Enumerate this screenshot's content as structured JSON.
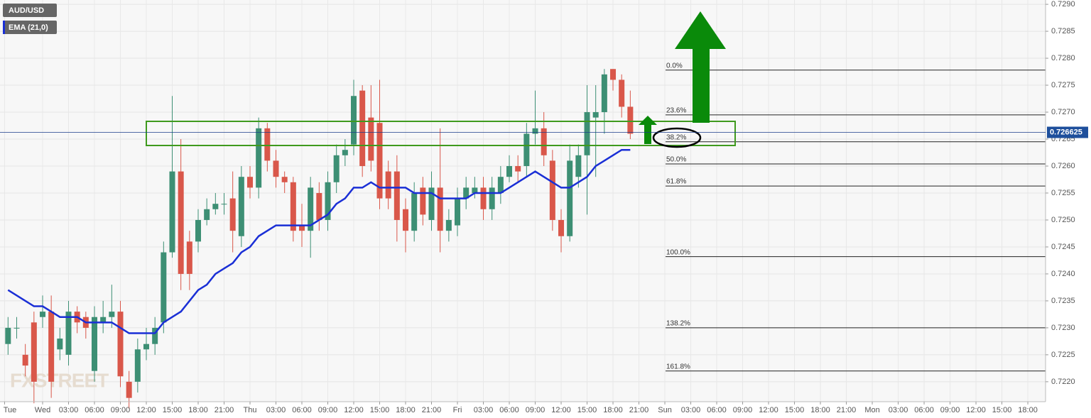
{
  "chart_data": {
    "type": "candlestick",
    "symbol": "AUD/USD",
    "watermark": "FXSTREET",
    "x": [
      -4,
      -3,
      -2,
      -1,
      0,
      1,
      2,
      3,
      4,
      5,
      6,
      7,
      8,
      9,
      10,
      11,
      12,
      13,
      14,
      15,
      16,
      17,
      18,
      19,
      20,
      21,
      22,
      23,
      24,
      25,
      26,
      27,
      28,
      29,
      30,
      31,
      32,
      33,
      34,
      35,
      36,
      37,
      38,
      39,
      40,
      41,
      42,
      43,
      44,
      45,
      46,
      47,
      48,
      49,
      50,
      51,
      52,
      53,
      54,
      55,
      56,
      57,
      58,
      59,
      60,
      61,
      62,
      63,
      64,
      65,
      66,
      67,
      68
    ],
    "open": [
      0.7227,
      0.723,
      0.7225,
      0.7231,
      0.7232,
      0.7233,
      0.7226,
      0.7225,
      0.7233,
      0.7232,
      0.7222,
      0.7231,
      0.7232,
      0.7233,
      0.722,
      0.722,
      0.7226,
      0.7227,
      0.7231,
      0.7244,
      0.7259,
      0.7246,
      0.7246,
      0.725,
      0.7252,
      0.7253,
      0.7254,
      0.7247,
      0.7258,
      0.7256,
      0.7267,
      0.7261,
      0.7258,
      0.7257,
      0.7249,
      0.7248,
      0.7255,
      0.725,
      0.7257,
      0.7262,
      0.7264,
      0.7274,
      0.7269,
      0.7268,
      0.7259,
      0.7259,
      0.7252,
      0.7248,
      0.7256,
      0.725,
      0.7256,
      0.7248,
      0.7249,
      0.7254,
      0.7255,
      0.7256,
      0.7252,
      0.7255,
      0.7258,
      0.726,
      0.726,
      0.7266,
      0.7267,
      0.7261,
      0.725,
      0.7247,
      0.7258,
      0.7262,
      0.7269,
      0.727,
      0.7278,
      0.7276,
      0.7271
    ],
    "high": [
      0.7232,
      0.7232,
      0.7227,
      0.7233,
      0.7236,
      0.7236,
      0.723,
      0.7235,
      0.7234,
      0.7233,
      0.7234,
      0.7235,
      0.7238,
      0.7235,
      0.7222,
      0.7228,
      0.723,
      0.7232,
      0.7246,
      0.7273,
      0.7265,
      0.7248,
      0.7252,
      0.7254,
      0.7255,
      0.7255,
      0.7259,
      0.726,
      0.726,
      0.7269,
      0.7268,
      0.7263,
      0.7259,
      0.7258,
      0.7253,
      0.7258,
      0.7257,
      0.7259,
      0.7264,
      0.7265,
      0.7276,
      0.7275,
      0.7275,
      0.7276,
      0.7261,
      0.7262,
      0.7254,
      0.7257,
      0.7258,
      0.7259,
      0.7267,
      0.7252,
      0.7256,
      0.7258,
      0.7258,
      0.7258,
      0.7258,
      0.726,
      0.7262,
      0.7262,
      0.7268,
      0.7274,
      0.727,
      0.7263,
      0.7252,
      0.7264,
      0.7264,
      0.7275,
      0.7275,
      0.7278,
      0.7278,
      0.7277,
      0.7274
    ],
    "low": [
      0.7225,
      0.7228,
      0.7221,
      0.7216,
      0.723,
      0.7217,
      0.7224,
      0.7223,
      0.7229,
      0.7228,
      0.722,
      0.7229,
      0.723,
      0.7219,
      0.7215,
      0.7218,
      0.7224,
      0.7225,
      0.7229,
      0.7243,
      0.7237,
      0.7237,
      0.7244,
      0.7249,
      0.7251,
      0.7251,
      0.7244,
      0.7245,
      0.7254,
      0.7254,
      0.7259,
      0.7256,
      0.7255,
      0.7246,
      0.7245,
      0.7243,
      0.7248,
      0.7248,
      0.7255,
      0.726,
      0.7262,
      0.7258,
      0.7259,
      0.7252,
      0.7252,
      0.7246,
      0.7244,
      0.7246,
      0.7249,
      0.7248,
      0.7244,
      0.7246,
      0.7247,
      0.7252,
      0.7254,
      0.725,
      0.725,
      0.7253,
      0.7257,
      0.7257,
      0.7258,
      0.7264,
      0.726,
      0.7248,
      0.7244,
      0.7246,
      0.7256,
      0.7251,
      0.7258,
      0.7266,
      0.7274,
      0.7269,
      0.7265
    ],
    "close": [
      0.723,
      0.723,
      0.7223,
      0.722,
      0.7233,
      0.722,
      0.7228,
      0.7233,
      0.7231,
      0.723,
      0.7232,
      0.7232,
      0.7233,
      0.7221,
      0.7217,
      0.7226,
      0.7227,
      0.723,
      0.7244,
      0.7259,
      0.724,
      0.724,
      0.725,
      0.7252,
      0.7253,
      0.7253,
      0.7248,
      0.7258,
      0.7256,
      0.7267,
      0.7261,
      0.7258,
      0.7257,
      0.7248,
      0.7248,
      0.7256,
      0.725,
      0.7257,
      0.7262,
      0.7263,
      0.7273,
      0.726,
      0.7261,
      0.7254,
      0.7254,
      0.725,
      0.7248,
      0.7255,
      0.7251,
      0.7256,
      0.7248,
      0.725,
      0.7254,
      0.7256,
      0.7256,
      0.7252,
      0.7256,
      0.7258,
      0.726,
      0.7259,
      0.7266,
      0.7267,
      0.7262,
      0.725,
      0.7247,
      0.7261,
      0.7262,
      0.727,
      0.727,
      0.7277,
      0.7276,
      0.7271,
      0.7266
    ],
    "up_color": "#3d8f74",
    "down_color": "#d9574a",
    "series": [
      {
        "name": "EMA (21,0)",
        "color": "#1a2fd6",
        "values": [
          0.7237,
          0.7236,
          0.7235,
          0.7234,
          0.7234,
          0.7233,
          0.7232,
          0.7232,
          0.7232,
          0.7231,
          0.7231,
          0.7231,
          0.7231,
          0.723,
          0.7229,
          0.7229,
          0.7229,
          0.7229,
          0.7231,
          0.7232,
          0.7233,
          0.7235,
          0.7237,
          0.7238,
          0.724,
          0.7241,
          0.7242,
          0.7244,
          0.7245,
          0.7247,
          0.7248,
          0.7249,
          0.7249,
          0.7249,
          0.7249,
          0.7249,
          0.725,
          0.7251,
          0.7253,
          0.7254,
          0.7256,
          0.7256,
          0.7257,
          0.7256,
          0.7256,
          0.7256,
          0.7256,
          0.7255,
          0.7255,
          0.7255,
          0.7254,
          0.7254,
          0.7254,
          0.7254,
          0.7255,
          0.7255,
          0.7255,
          0.7255,
          0.7256,
          0.7257,
          0.7258,
          0.7259,
          0.7258,
          0.7257,
          0.7256,
          0.7256,
          0.7257,
          0.7258,
          0.726,
          0.7261,
          0.7262,
          0.7263,
          0.7263
        ]
      }
    ],
    "last_price": 0.726625,
    "fib_levels": [
      {
        "label": "0.0%",
        "value": 0.72778
      },
      {
        "label": "23.6%",
        "value": 0.72695
      },
      {
        "label": "38.2%",
        "value": 0.72645
      },
      {
        "label": "50.0%",
        "value": 0.72604
      },
      {
        "label": "61.8%",
        "value": 0.72563
      },
      {
        "label": "100.0%",
        "value": 0.72432
      },
      {
        "label": "138.2%",
        "value": 0.723
      },
      {
        "label": "161.8%",
        "value": 0.7222
      }
    ],
    "xlim": [
      -4.93,
      116.05
    ],
    "ylim": [
      0.72163,
      0.72908
    ],
    "yticks": [
      {
        "value": 0.722,
        "label": "0.7220"
      },
      {
        "value": 0.7225,
        "label": "0.7225"
      },
      {
        "value": 0.723,
        "label": "0.7230"
      },
      {
        "value": 0.7235,
        "label": "0.7235"
      },
      {
        "value": 0.724,
        "label": "0.7240"
      },
      {
        "value": 0.7245,
        "label": "0.7245"
      },
      {
        "value": 0.725,
        "label": "0.7250"
      },
      {
        "value": 0.7255,
        "label": "0.7255"
      },
      {
        "value": 0.726,
        "label": "0.7260"
      },
      {
        "value": 0.7265,
        "label": "0.7265"
      },
      {
        "value": 0.727,
        "label": "0.7270"
      },
      {
        "value": 0.7275,
        "label": "0.7275"
      },
      {
        "value": 0.728,
        "label": "0.7280"
      },
      {
        "value": 0.7285,
        "label": "0.7285"
      },
      {
        "value": 0.729,
        "label": "0.7290"
      }
    ],
    "xticks": [
      {
        "value": -4.4,
        "label": "Tue"
      },
      {
        "value": 0,
        "label": "Wed"
      },
      {
        "value": 3,
        "label": "03:00"
      },
      {
        "value": 6,
        "label": "06:00"
      },
      {
        "value": 9,
        "label": "09:00"
      },
      {
        "value": 12,
        "label": "12:00"
      },
      {
        "value": 15,
        "label": "15:00"
      },
      {
        "value": 18,
        "label": "18:00"
      },
      {
        "value": 21,
        "label": "21:00"
      },
      {
        "value": 24,
        "label": "Thu"
      },
      {
        "value": 27,
        "label": "03:00"
      },
      {
        "value": 30,
        "label": "06:00"
      },
      {
        "value": 33,
        "label": "09:00"
      },
      {
        "value": 36,
        "label": "12:00"
      },
      {
        "value": 39,
        "label": "15:00"
      },
      {
        "value": 42,
        "label": "18:00"
      },
      {
        "value": 45,
        "label": "21:00"
      },
      {
        "value": 48,
        "label": "Fri"
      },
      {
        "value": 51,
        "label": "03:00"
      },
      {
        "value": 54,
        "label": "06:00"
      },
      {
        "value": 57,
        "label": "09:00"
      },
      {
        "value": 60,
        "label": "12:00"
      },
      {
        "value": 63,
        "label": "15:00"
      },
      {
        "value": 66,
        "label": "18:00"
      },
      {
        "value": 69,
        "label": "21:00"
      },
      {
        "value": 72,
        "label": "Sun"
      },
      {
        "value": 75,
        "label": "03:00"
      },
      {
        "value": 78,
        "label": "06:00"
      },
      {
        "value": 81,
        "label": "09:00"
      },
      {
        "value": 84,
        "label": "12:00"
      },
      {
        "value": 87,
        "label": "15:00"
      },
      {
        "value": 90,
        "label": "18:00"
      },
      {
        "value": 93,
        "label": "21:00"
      },
      {
        "value": 96,
        "label": "Mon"
      },
      {
        "value": 99,
        "label": "03:00"
      },
      {
        "value": 102,
        "label": "06:00"
      },
      {
        "value": 105,
        "label": "09:00"
      },
      {
        "value": 108,
        "label": "12:00"
      },
      {
        "value": 111,
        "label": "15:00"
      },
      {
        "value": 114,
        "label": "18:00"
      }
    ],
    "grid": true
  }
}
